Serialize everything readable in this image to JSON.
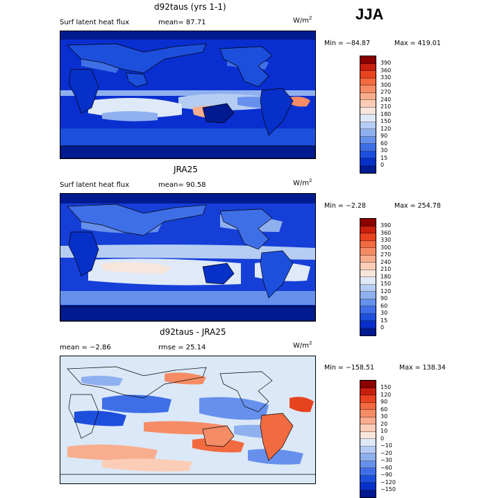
{
  "season": "JJA",
  "panels": [
    {
      "title": "d92taus (yrs 1-1)",
      "left_label": "Surf latent heat flux",
      "mean_text": "mean=  87.71",
      "units": "W/m",
      "units_exp": "2",
      "min_text": "Min = −84.87",
      "max_text": "Max = 419.01",
      "map_bg": "#0a2fd0",
      "colorbar": {
        "labels": [
          "390",
          "360",
          "330",
          "300",
          "270",
          "240",
          "210",
          "180",
          "150",
          "120",
          "90",
          "60",
          "30",
          "15",
          "0"
        ],
        "colors": [
          "#8b0000",
          "#c8200c",
          "#e8431f",
          "#f26a40",
          "#f68c66",
          "#f8ae8e",
          "#fbcdb6",
          "#f7e6dc",
          "#dfe9f8",
          "#b6cdf3",
          "#8fb0ef",
          "#6690ec",
          "#3f6fe6",
          "#1d4fdd",
          "#0730c8",
          "#001b8f"
        ]
      }
    },
    {
      "title": "JRA25",
      "left_label": "Surf latent heat flux",
      "mean_text": "mean=  90.58",
      "units": "W/m",
      "units_exp": "2",
      "min_text": "Min = −2.28",
      "max_text": "Max = 254.78",
      "map_bg": "#163fd8",
      "colorbar": {
        "labels": [
          "390",
          "360",
          "330",
          "300",
          "270",
          "240",
          "210",
          "180",
          "150",
          "120",
          "90",
          "60",
          "30",
          "15",
          "0"
        ],
        "colors": [
          "#8b0000",
          "#c8200c",
          "#e8431f",
          "#f26a40",
          "#f68c66",
          "#f8ae8e",
          "#fbcdb6",
          "#f7e6dc",
          "#dfe9f8",
          "#b6cdf3",
          "#8fb0ef",
          "#6690ec",
          "#3f6fe6",
          "#1d4fdd",
          "#0730c8",
          "#001b8f"
        ]
      }
    },
    {
      "title": "d92taus - JRA25",
      "left_label": "mean =  −2.86",
      "mean_text": "rmse =  25.14",
      "units": "W/m",
      "units_exp": "2",
      "min_text": "Min = −158.51",
      "max_text": "Max = 138.34",
      "map_bg": "#dbe8f7",
      "colorbar": {
        "labels": [
          "150",
          "120",
          "90",
          "60",
          "30",
          "20",
          "10",
          "0",
          "−10",
          "−20",
          "−30",
          "−60",
          "−90",
          "−120",
          "−150"
        ],
        "colors": [
          "#8b0000",
          "#c8200c",
          "#e8431f",
          "#f26a40",
          "#f68c66",
          "#f8ae8e",
          "#fbcdb6",
          "#fbe6dc",
          "#dfe9f8",
          "#b6cdf3",
          "#8fb0ef",
          "#6690ec",
          "#3f6fe6",
          "#1d4fdd",
          "#0730c8",
          "#001b8f"
        ]
      }
    }
  ]
}
